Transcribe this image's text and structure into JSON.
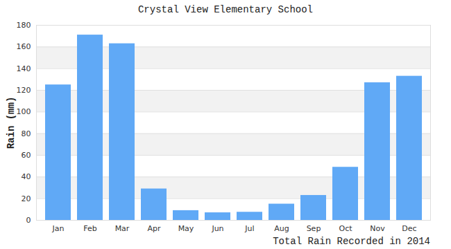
{
  "chart_data": {
    "type": "bar",
    "title": "Crystal View Elementary School",
    "categories": [
      "Jan",
      "Feb",
      "Mar",
      "Apr",
      "May",
      "Jun",
      "Jul",
      "Aug",
      "Sep",
      "Oct",
      "Nov",
      "Dec"
    ],
    "values": [
      125,
      171,
      163,
      29,
      9,
      7,
      7.5,
      15,
      23,
      49,
      127,
      133
    ],
    "color": "#60a9f6",
    "y_label": "Rain (mm)",
    "x_label": "Total Rain Recorded in 2014",
    "ylim": [
      0,
      180
    ],
    "yticks": [
      0,
      20,
      40,
      60,
      80,
      100,
      120,
      140,
      160,
      180
    ],
    "grid": true
  }
}
